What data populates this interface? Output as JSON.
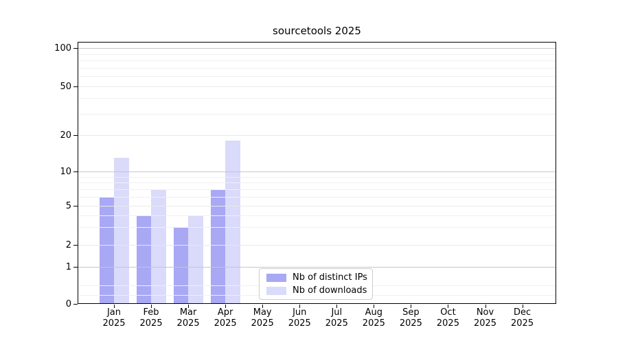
{
  "chart_data": {
    "type": "bar",
    "title": "sourcetools 2025",
    "x_tick_months": [
      "Jan",
      "Feb",
      "Mar",
      "Apr",
      "May",
      "Jun",
      "Jul",
      "Aug",
      "Sep",
      "Oct",
      "Nov",
      "Dec"
    ],
    "x_tick_year": "2025",
    "y_ticks": [
      0,
      1,
      2,
      5,
      10,
      20,
      50,
      100
    ],
    "y_tick_labels": [
      "0",
      "1",
      "2",
      "5",
      "10",
      "20",
      "50",
      "100"
    ],
    "y_minor_ticks": [
      0.25,
      0.5,
      3,
      4,
      6,
      7,
      8,
      9,
      30,
      40,
      60,
      70,
      80,
      90
    ],
    "y_scale": "symlog",
    "ylim": [
      0,
      112
    ],
    "grid": true,
    "legend_position": "lower center",
    "series": [
      {
        "name": "Nb of distinct IPs",
        "color": "#a8a8f4",
        "values": [
          6,
          4,
          3,
          7,
          0,
          0,
          0,
          0,
          0,
          0,
          0,
          0
        ]
      },
      {
        "name": "Nb of downloads",
        "color": "#dadafb",
        "values": [
          13,
          7,
          4,
          18,
          0,
          0,
          0,
          0,
          0,
          0,
          0,
          0
        ]
      }
    ],
    "colors": {
      "grid_decade": "#c6c6c6",
      "grid_labeled": "#e9e9e9",
      "grid_minor": "#f0f0f0"
    }
  }
}
